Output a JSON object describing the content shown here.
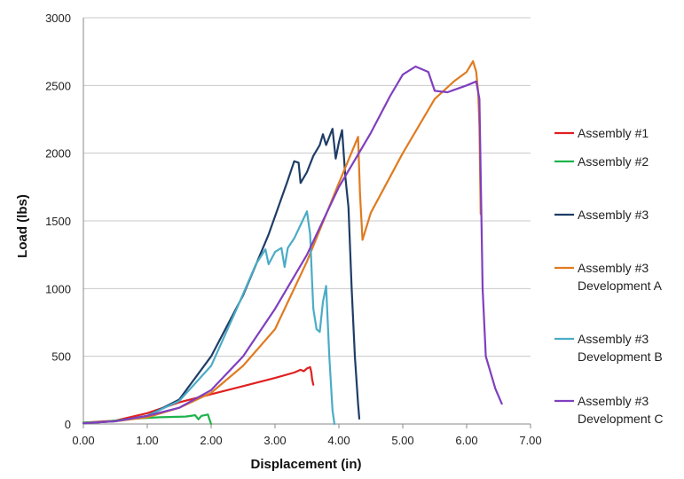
{
  "chart_data": {
    "type": "line",
    "title": "",
    "xlabel": "Displacement (in)",
    "ylabel": "Load (lbs)",
    "xlim": [
      0,
      7
    ],
    "ylim": [
      0,
      3000
    ],
    "x_ticks": [
      "0.00",
      "1.00",
      "2.00",
      "3.00",
      "4.00",
      "5.00",
      "6.00",
      "7.00"
    ],
    "y_ticks": [
      "0",
      "500",
      "1000",
      "1500",
      "2000",
      "2500",
      "3000"
    ],
    "grid": "horizontal",
    "legend_position": "right",
    "series": [
      {
        "name": "Assembly #1",
        "legend_lines": [
          "Assembly #1"
        ],
        "color": "#e02020",
        "points": [
          [
            0,
            10
          ],
          [
            0.5,
            25
          ],
          [
            1.0,
            80
          ],
          [
            1.5,
            160
          ],
          [
            2.0,
            220
          ],
          [
            2.5,
            280
          ],
          [
            3.0,
            340
          ],
          [
            3.3,
            380
          ],
          [
            3.4,
            400
          ],
          [
            3.45,
            390
          ],
          [
            3.5,
            410
          ],
          [
            3.55,
            420
          ],
          [
            3.57,
            380
          ],
          [
            3.58,
            330
          ],
          [
            3.6,
            290
          ]
        ]
      },
      {
        "name": "Assembly #2",
        "legend_lines": [
          "Assembly #2"
        ],
        "color": "#1db34b",
        "points": [
          [
            0,
            10
          ],
          [
            0.3,
            15
          ],
          [
            0.8,
            40
          ],
          [
            1.2,
            50
          ],
          [
            1.6,
            55
          ],
          [
            1.75,
            65
          ],
          [
            1.8,
            35
          ],
          [
            1.85,
            60
          ],
          [
            1.9,
            65
          ],
          [
            1.95,
            70
          ],
          [
            1.97,
            40
          ],
          [
            2.0,
            0
          ]
        ]
      },
      {
        "name": "Assembly #3",
        "legend_lines": [
          "Assembly #3"
        ],
        "color": "#1f3d66",
        "points": [
          [
            0,
            5
          ],
          [
            0.5,
            20
          ],
          [
            1.0,
            60
          ],
          [
            1.5,
            180
          ],
          [
            2.0,
            500
          ],
          [
            2.5,
            950
          ],
          [
            2.9,
            1400
          ],
          [
            3.2,
            1800
          ],
          [
            3.3,
            1940
          ],
          [
            3.37,
            1930
          ],
          [
            3.4,
            1780
          ],
          [
            3.5,
            1860
          ],
          [
            3.6,
            1980
          ],
          [
            3.7,
            2060
          ],
          [
            3.75,
            2140
          ],
          [
            3.8,
            2060
          ],
          [
            3.9,
            2180
          ],
          [
            3.95,
            1960
          ],
          [
            4.0,
            2080
          ],
          [
            4.05,
            2170
          ],
          [
            4.1,
            1830
          ],
          [
            4.15,
            1600
          ],
          [
            4.2,
            1000
          ],
          [
            4.25,
            500
          ],
          [
            4.3,
            150
          ],
          [
            4.32,
            40
          ]
        ]
      },
      {
        "name": "Assembly #3 Development A",
        "legend_lines": [
          "Assembly #3",
          "Development A"
        ],
        "color": "#e07b21",
        "points": [
          [
            0,
            5
          ],
          [
            0.5,
            20
          ],
          [
            1.0,
            50
          ],
          [
            1.5,
            120
          ],
          [
            2.0,
            230
          ],
          [
            2.5,
            430
          ],
          [
            3.0,
            700
          ],
          [
            3.5,
            1200
          ],
          [
            4.0,
            1780
          ],
          [
            4.3,
            2120
          ],
          [
            4.33,
            1700
          ],
          [
            4.37,
            1360
          ],
          [
            4.5,
            1560
          ],
          [
            5.0,
            2000
          ],
          [
            5.5,
            2400
          ],
          [
            5.8,
            2530
          ],
          [
            6.0,
            2600
          ],
          [
            6.1,
            2680
          ],
          [
            6.15,
            2600
          ],
          [
            6.18,
            2450
          ],
          [
            6.2,
            2200
          ],
          [
            6.22,
            1550
          ]
        ]
      },
      {
        "name": "Assembly #3 Development B",
        "legend_lines": [
          "Assembly #3",
          "Development B"
        ],
        "color": "#4bacc6",
        "points": [
          [
            0,
            5
          ],
          [
            0.5,
            20
          ],
          [
            1.0,
            60
          ],
          [
            1.5,
            170
          ],
          [
            2.0,
            430
          ],
          [
            2.4,
            850
          ],
          [
            2.7,
            1180
          ],
          [
            2.85,
            1290
          ],
          [
            2.9,
            1180
          ],
          [
            3.0,
            1270
          ],
          [
            3.1,
            1300
          ],
          [
            3.15,
            1160
          ],
          [
            3.2,
            1300
          ],
          [
            3.3,
            1370
          ],
          [
            3.4,
            1470
          ],
          [
            3.5,
            1570
          ],
          [
            3.55,
            1400
          ],
          [
            3.58,
            1050
          ],
          [
            3.6,
            850
          ],
          [
            3.65,
            700
          ],
          [
            3.7,
            680
          ],
          [
            3.75,
            900
          ],
          [
            3.8,
            1020
          ],
          [
            3.85,
            500
          ],
          [
            3.9,
            100
          ],
          [
            3.93,
            0
          ]
        ]
      },
      {
        "name": "Assembly #3 Development C",
        "legend_lines": [
          "Assembly #3",
          "Development C"
        ],
        "color": "#7f3fbf",
        "points": [
          [
            0,
            5
          ],
          [
            0.5,
            20
          ],
          [
            1.0,
            60
          ],
          [
            1.5,
            120
          ],
          [
            2.0,
            250
          ],
          [
            2.5,
            500
          ],
          [
            3.0,
            850
          ],
          [
            3.5,
            1250
          ],
          [
            4.0,
            1750
          ],
          [
            4.5,
            2150
          ],
          [
            4.8,
            2420
          ],
          [
            5.0,
            2580
          ],
          [
            5.2,
            2640
          ],
          [
            5.4,
            2600
          ],
          [
            5.5,
            2460
          ],
          [
            5.7,
            2450
          ],
          [
            6.0,
            2500
          ],
          [
            6.15,
            2530
          ],
          [
            6.2,
            2400
          ],
          [
            6.25,
            1000
          ],
          [
            6.3,
            500
          ],
          [
            6.45,
            260
          ],
          [
            6.55,
            150
          ]
        ]
      }
    ]
  }
}
